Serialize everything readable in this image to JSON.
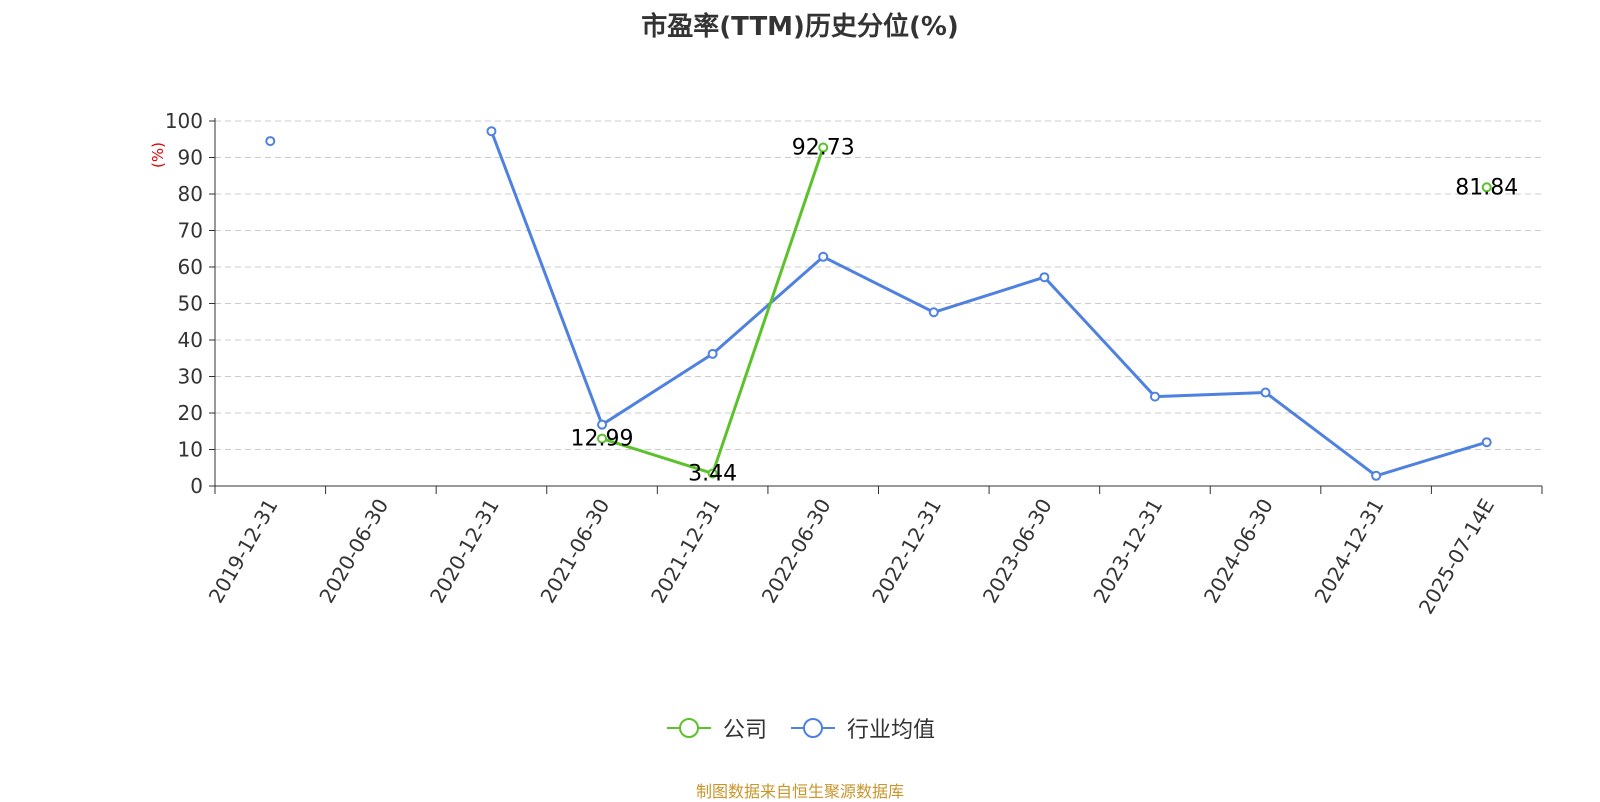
{
  "chart_data": {
    "type": "line",
    "title": "市盈率(TTM)历史分位(%)",
    "ylabel": "(%)",
    "xlabel": "",
    "ylim": [
      0,
      100
    ],
    "yticks": [
      0,
      10,
      20,
      30,
      40,
      50,
      60,
      70,
      80,
      90,
      100
    ],
    "grid": true,
    "legend_position": "bottom",
    "categories": [
      "2019-12-31",
      "2020-06-30",
      "2020-12-31",
      "2021-06-30",
      "2021-12-31",
      "2022-06-30",
      "2022-12-31",
      "2023-06-30",
      "2023-12-31",
      "2024-06-30",
      "2024-12-31",
      "2025-07-14E"
    ],
    "series": [
      {
        "name": "公司",
        "color": "#5cc22c",
        "values": [
          null,
          null,
          null,
          12.99,
          3.44,
          92.73,
          null,
          null,
          null,
          null,
          null,
          81.84
        ],
        "labels": [
          null,
          null,
          null,
          "12.99",
          "3.44",
          "92.73",
          null,
          null,
          null,
          null,
          null,
          "81.84"
        ]
      },
      {
        "name": "行业均值",
        "color": "#4f81e0",
        "values": [
          94.5,
          null,
          97.2,
          16.8,
          36.2,
          62.8,
          47.6,
          57.2,
          24.5,
          25.6,
          2.8,
          12.0
        ],
        "labels": [
          null,
          null,
          null,
          null,
          null,
          null,
          null,
          null,
          null,
          null,
          null,
          null
        ]
      }
    ]
  },
  "source_text": "制图数据来自恒生聚源数据库"
}
